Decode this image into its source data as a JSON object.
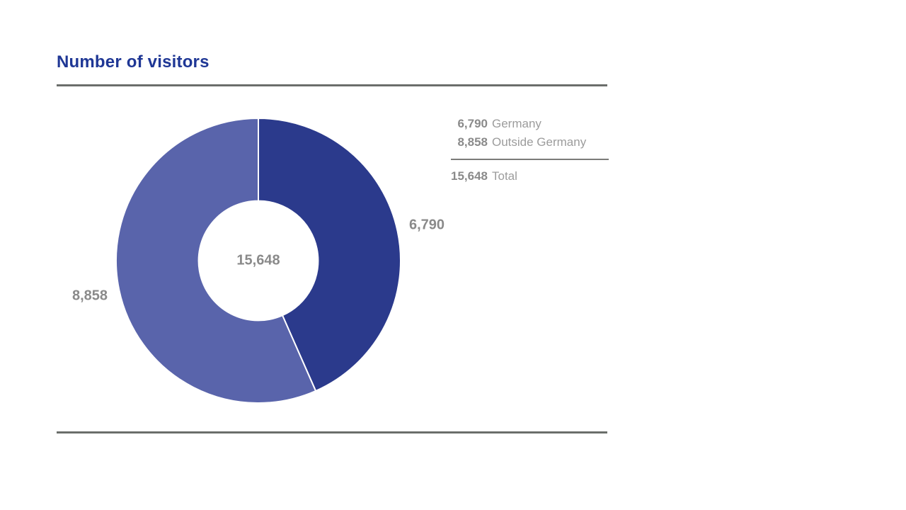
{
  "chart_data": {
    "type": "donut",
    "title": "Number of visitors",
    "segments": [
      {
        "label": "Germany",
        "value": 6790,
        "display": "6,790",
        "color": "#2b3a8c"
      },
      {
        "label": "Outside Germany",
        "value": 8858,
        "display": "8,858",
        "color": "#5964ab"
      }
    ],
    "total": 15648,
    "total_display": "15,648",
    "total_label": "Total",
    "center_label": "15,648",
    "start_angle_deg": 0,
    "direction": "clockwise",
    "inner_radius_ratio": 0.42,
    "slice_gap_stroke": "#ffffff",
    "legend_position": "top-right",
    "grid": false
  },
  "colors": {
    "title": "#1f3795",
    "rule": "#6b6e6b",
    "legend_rule": "#7b7b79",
    "value_text": "#8a8a8a",
    "label_text": "#9c9c9c",
    "background": "#ffffff"
  }
}
